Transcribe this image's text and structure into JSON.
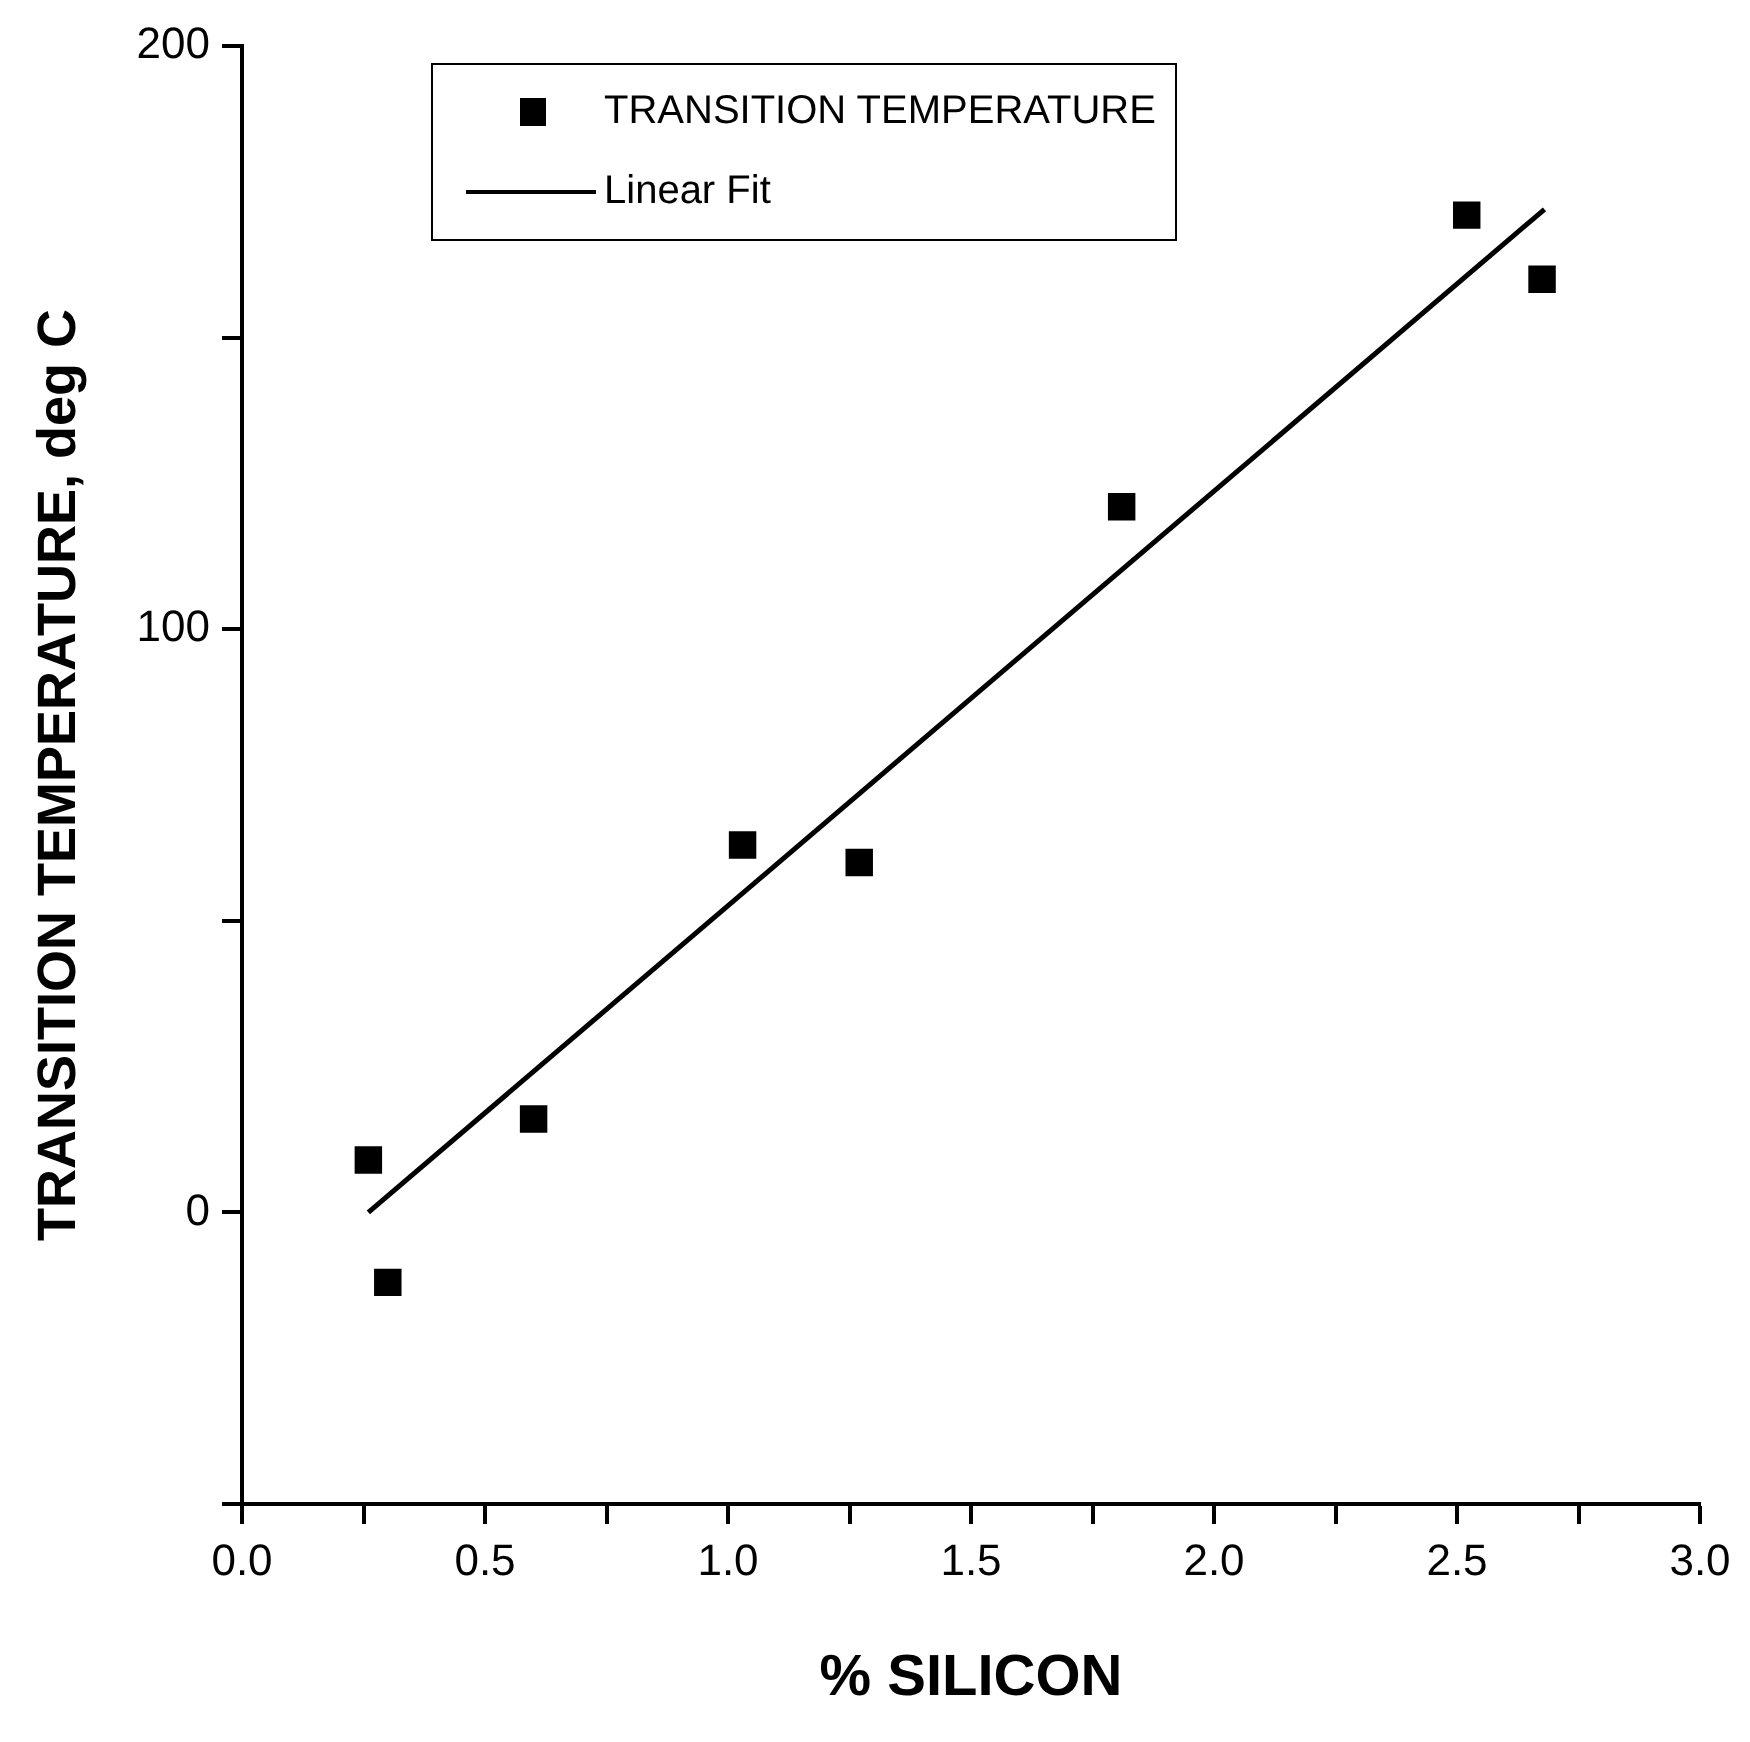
{
  "chart_data": {
    "type": "scatter",
    "xlabel": "% SILICON",
    "ylabel": "TRANSITION TEMPERATURE, deg C",
    "x": [
      0.26,
      0.3,
      0.6,
      1.03,
      1.27,
      1.81,
      2.52,
      2.675
    ],
    "series": [
      {
        "name": "TRANSITION TEMPERATURE",
        "color": "#000000",
        "marker": "square",
        "values": [
          9,
          -12,
          16,
          63,
          60,
          121,
          171,
          160
        ]
      },
      {
        "name": "Linear Fit",
        "type": "line",
        "color": "#000000",
        "marker": "none",
        "x": [
          0.26,
          2.68
        ],
        "values": [
          0,
          172
        ]
      }
    ],
    "xlim": [
      0,
      3
    ],
    "ylim": [
      -50,
      200
    ],
    "xticks": [
      {
        "value": 0,
        "label": "0.0"
      },
      {
        "value": 0.25,
        "label": null
      },
      {
        "value": 0.5,
        "label": "0.5"
      },
      {
        "value": 0.75,
        "label": null
      },
      {
        "value": 1,
        "label": "1.0"
      },
      {
        "value": 1.25,
        "label": null
      },
      {
        "value": 1.5,
        "label": "1.5"
      },
      {
        "value": 1.75,
        "label": null
      },
      {
        "value": 2,
        "label": "2.0"
      },
      {
        "value": 2.25,
        "label": null
      },
      {
        "value": 2.5,
        "label": "2.5"
      },
      {
        "value": 2.75,
        "label": null
      },
      {
        "value": 3,
        "label": "3.0"
      }
    ],
    "yticks": [
      {
        "value": -50,
        "label": null
      },
      0,
      {
        "value": 50,
        "label": null
      },
      100,
      {
        "value": 150,
        "label": null
      },
      200
    ],
    "legend": "top left",
    "grid": false
  }
}
